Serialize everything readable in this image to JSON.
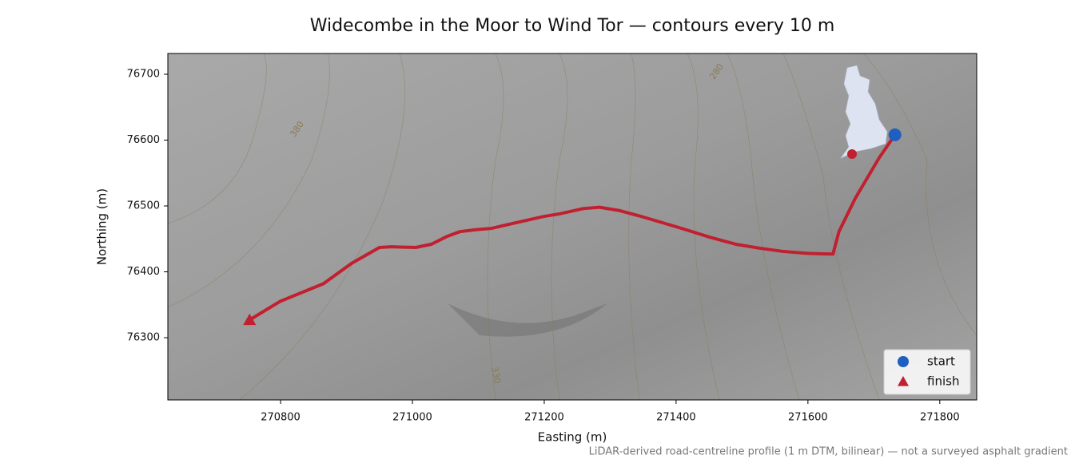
{
  "chart_data": {
    "type": "line",
    "title": "Widecombe in the Moor to Wind Tor — contours every 10 m",
    "x_label": "Easting (m)",
    "y_label": "Northing (m)",
    "footnote": "LiDAR-derived road-centreline profile (1 m DTM, bilinear) — not a surveyed asphalt gradient",
    "xlim": [
      270629,
      271856
    ],
    "ylim": [
      76205.5,
      76731.5
    ],
    "xticks": [
      270800,
      271000,
      271200,
      271400,
      271600,
      271800
    ],
    "yticks": [
      76300,
      76400,
      76500,
      76600,
      76700
    ],
    "contour_labels": [
      "380",
      "280",
      "330"
    ],
    "route": {
      "color": "#c0202f",
      "x": [
        270753,
        270799,
        270865,
        270908,
        270950,
        270968,
        271005,
        271029,
        271053,
        271072,
        271096,
        271120,
        271150,
        271199,
        271223,
        271259,
        271284,
        271314,
        271344,
        271405,
        271453,
        271490,
        271526,
        271562,
        271599,
        271638,
        271647,
        271672,
        271708,
        271732
      ],
      "y": [
        76327,
        76355,
        76382,
        76413,
        76437,
        76438,
        76437,
        76442,
        76454,
        76461,
        76464,
        76466,
        76473,
        76484,
        76488,
        76496,
        76498,
        76493,
        76485,
        76467,
        76452,
        76442,
        76436,
        76431,
        76428,
        76427,
        76461,
        76512,
        76573,
        76608
      ]
    },
    "series": [
      {
        "name": "start",
        "color": "#1f5fbf",
        "marker": "circle",
        "x": [
          271732
        ],
        "y": [
          76608
        ]
      },
      {
        "name": "finish",
        "color": "#c0202f",
        "marker": "triangle",
        "x": [
          270753
        ],
        "y": [
          76327
        ]
      }
    ],
    "legend": "lower right"
  }
}
